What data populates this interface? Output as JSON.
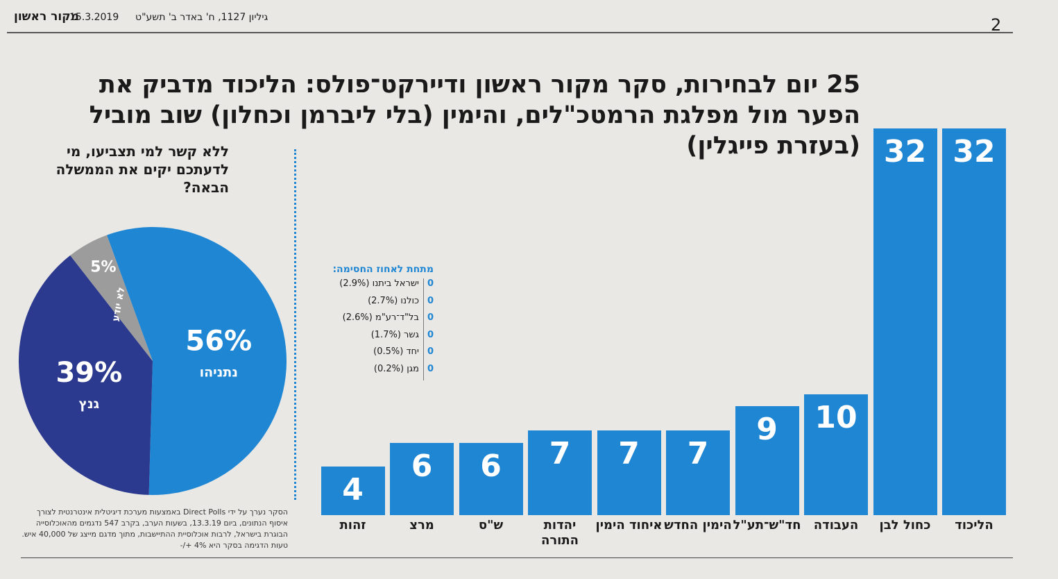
{
  "header": {
    "masthead": "מקור ראשון",
    "date": "15.3.2019",
    "issue": "גיליון 1127, ח' באדר ב' תשע\"ט",
    "page": "2"
  },
  "chart_data": [
    {
      "type": "bar",
      "title": "25 יום לבחירות, סקר מקור ראשון ודיירקט־פולס: הליכוד מדביק את הפער מול מפלגת הרמטכ\"לים, והימין (בלי ליברמן וכחלון) שוב מוביל (בעזרת פייגלין)",
      "categories": [
        "הליכוד",
        "כחול לבן",
        "העבודה",
        "חד\"ש־תע\"ל",
        "הימין החדש",
        "איחוד הימין",
        "יהדות התורה",
        "ש\"ס",
        "מרצ",
        "זהות"
      ],
      "values": [
        32,
        32,
        10,
        9,
        7,
        7,
        7,
        6,
        6,
        4
      ],
      "color": "#1f86d4"
    },
    {
      "type": "pie",
      "title": "ללא קשר למי תצביעו, מי לדעתכם יקים את הממשלה הבאה?",
      "categories": [
        "נתניהו",
        "גנץ",
        "לא יודע"
      ],
      "values": [
        56,
        39,
        5
      ],
      "value_labels": [
        "56%",
        "39%",
        "5%"
      ],
      "colors": [
        "#1f86d4",
        "#2b3a8e",
        "#9c9c9c"
      ]
    }
  ],
  "below_threshold": {
    "title": "מתחת לאחוז החסימה:",
    "rows": [
      {
        "seats": 0,
        "party": "ישראל ביתנו (2.9%)"
      },
      {
        "seats": 0,
        "party": "כולנו (2.7%)"
      },
      {
        "seats": 0,
        "party": "בל\"ד־רע\"מ (2.6%)"
      },
      {
        "seats": 0,
        "party": "גשר (1.7%)"
      },
      {
        "seats": 0,
        "party": "יחד (0.5%)"
      },
      {
        "seats": 0,
        "party": "מגן (0.2%)"
      }
    ]
  },
  "footnote": "הסקר נערך על ידי Direct Polls באמצעות מערכת דיגיטלית אינטרנטית לצורך איסוף הנתונים, ביום 13.3.19, בשעות הערב, בקרב 547 נדגמים מהאוכלוסייה הבוגרת בישראל, לרבות אוכלוסיית ההתיישבות, מתוך מדגם מייצג של 40,000 איש. טעות הדגימה בסקר היא 4% +/-"
}
